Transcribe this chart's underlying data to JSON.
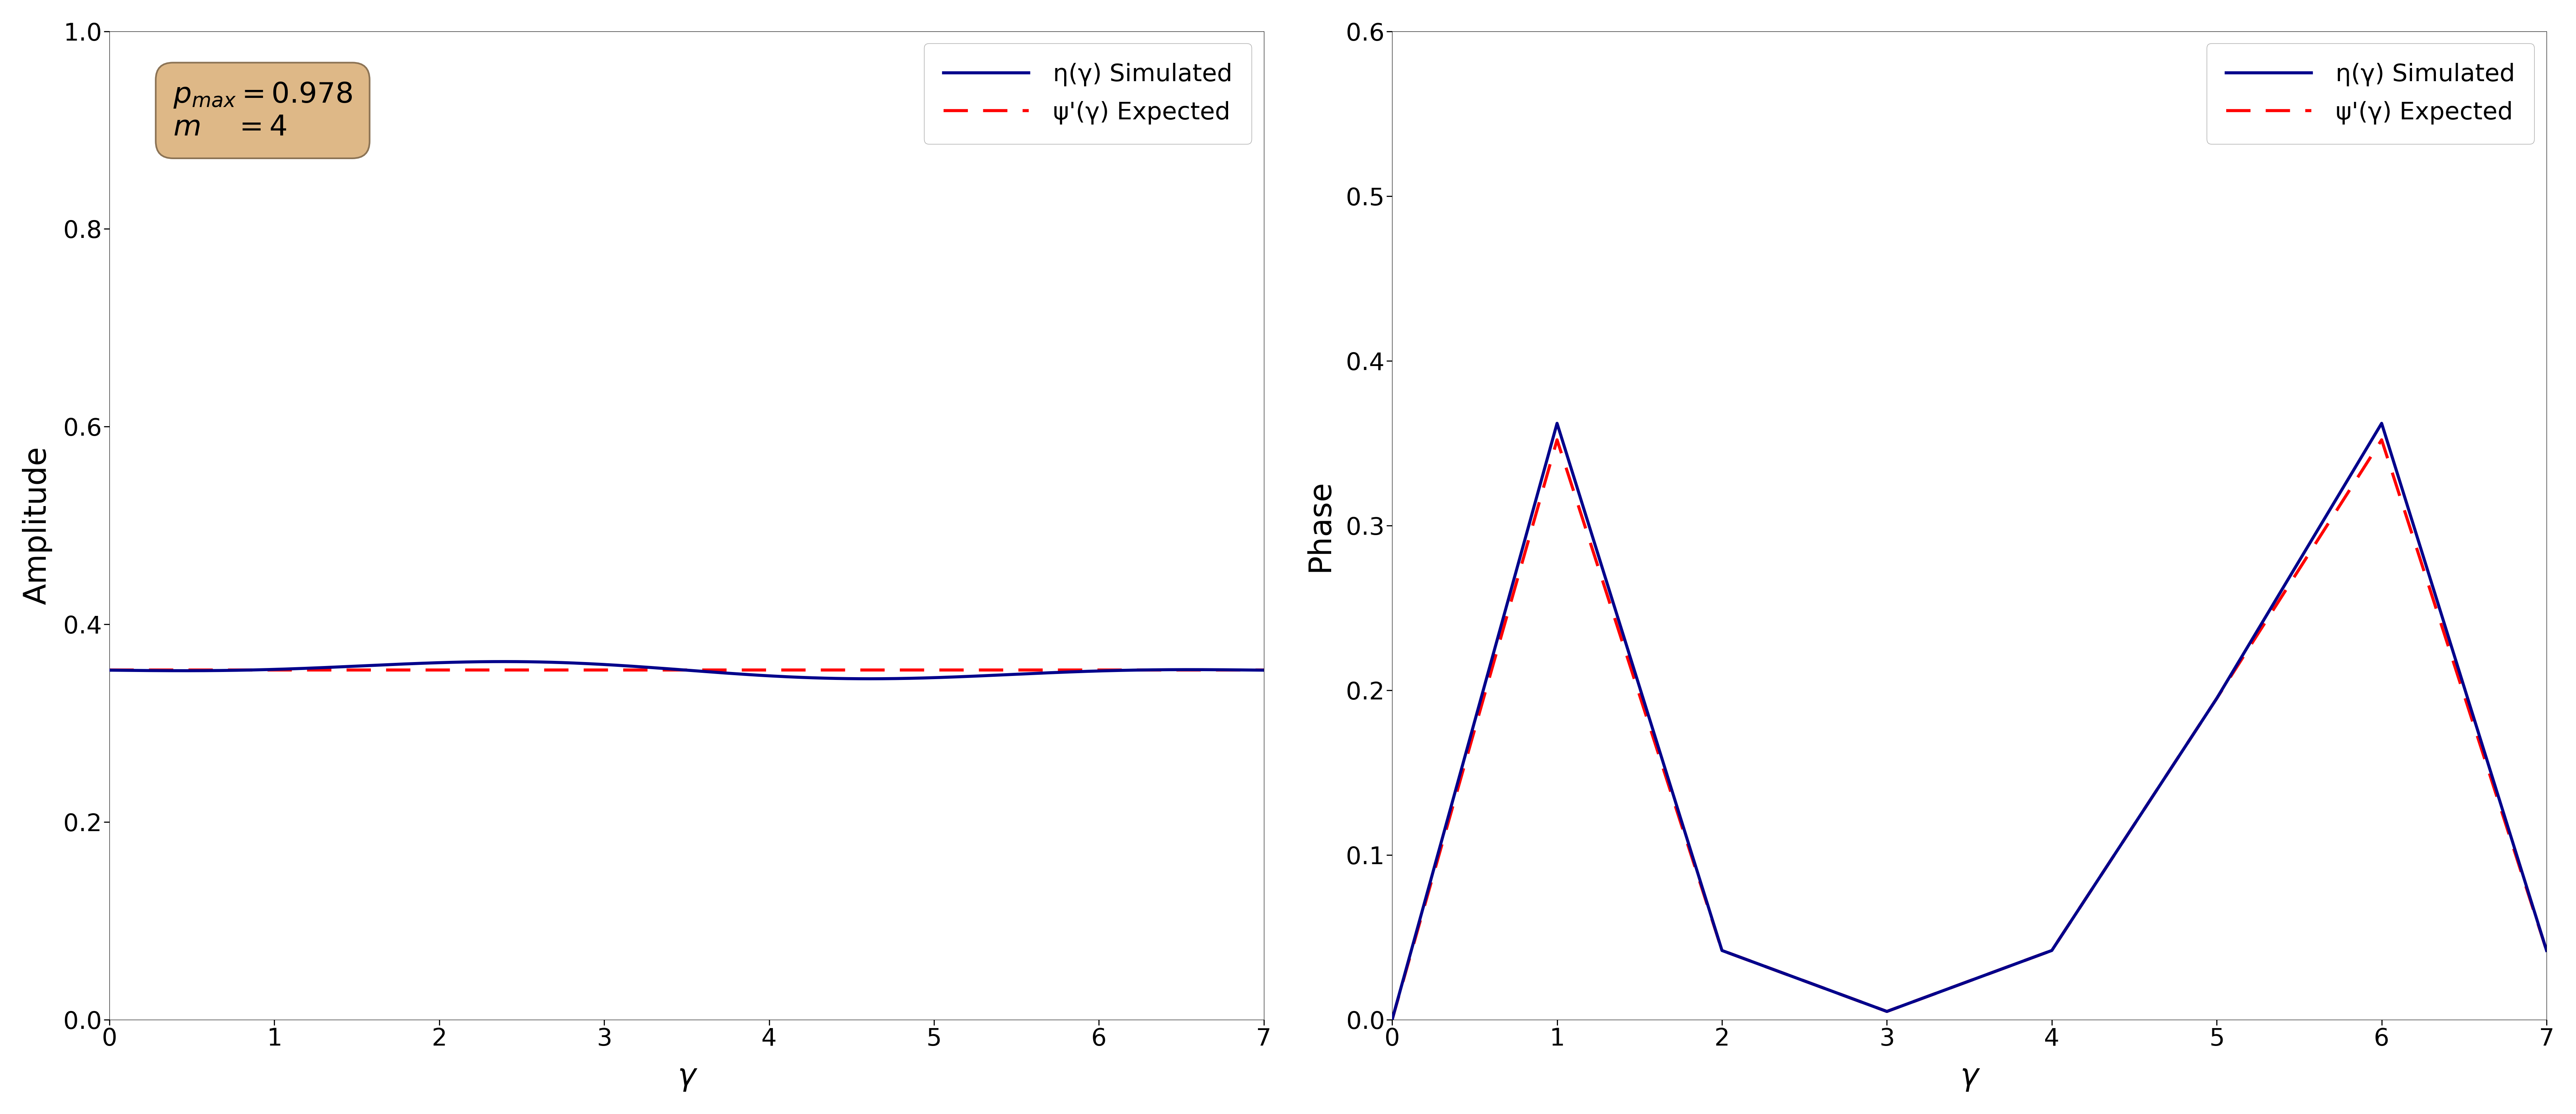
{
  "left_plot": {
    "xlabel": "γ",
    "ylabel": "Amplitude",
    "xlim": [
      0,
      7
    ],
    "ylim": [
      0.0,
      1.0
    ],
    "yticks": [
      0.0,
      0.2,
      0.4,
      0.6,
      0.8,
      1.0
    ],
    "xticks": [
      0,
      1,
      2,
      3,
      4,
      5,
      6,
      7
    ],
    "amp_base": 0.3536,
    "amp_osc_amp": 0.006,
    "amp_osc_freq": 7.0,
    "annotation_box_color": "#DEB887",
    "sim_color": "#00008B",
    "exp_color": "#FF0000",
    "sim_label": "η(γ) Simulated",
    "exp_label": "ψ'(γ) Expected"
  },
  "right_plot": {
    "xlabel": "γ",
    "ylabel": "Phase",
    "xlim": [
      0,
      7
    ],
    "ylim": [
      0.0,
      0.6
    ],
    "yticks": [
      0.0,
      0.1,
      0.2,
      0.3,
      0.4,
      0.5,
      0.6
    ],
    "xticks": [
      0,
      1,
      2,
      3,
      4,
      5,
      6,
      7
    ],
    "phase_x": [
      0.0,
      1.0,
      2.0,
      3.0,
      4.0,
      5.0,
      6.0,
      7.0
    ],
    "phase_sim_y": [
      0.0,
      0.362,
      0.042,
      0.005,
      0.042,
      0.195,
      0.362,
      0.042
    ],
    "phase_exp_y": [
      0.0,
      0.352,
      0.042,
      0.005,
      0.042,
      0.195,
      0.352,
      0.042
    ],
    "sim_color": "#00008B",
    "exp_color": "#FF0000",
    "sim_label": "η(γ) Simulated",
    "exp_label": "ψ'(γ) Expected"
  },
  "figsize": [
    64.74,
    28.0
  ],
  "dpi": 100,
  "tick_labelsize": 44,
  "axis_labelsize": 56,
  "legend_fontsize": 44,
  "linewidth": 5.5,
  "annotation_fontsize": 52
}
